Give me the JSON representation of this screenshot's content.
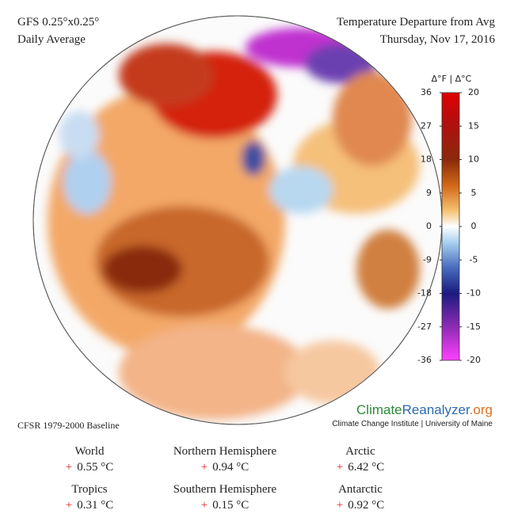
{
  "header": {
    "model": "GFS 0.25°x0.25°",
    "period": "Daily Average",
    "title": "Temperature Departure from Avg",
    "date": "Thursday, Nov 17, 2016"
  },
  "colorbar": {
    "label": "Δ°F | Δ°C",
    "fahrenheit_ticks": [
      36,
      27,
      18,
      9,
      0,
      -9,
      -18,
      -27,
      -36
    ],
    "celsius_ticks": [
      20,
      15,
      10,
      5,
      0,
      -5,
      -10,
      -15,
      -20
    ]
  },
  "baseline": "CFSR 1979-2000 Baseline",
  "logo": {
    "part1": "Climate",
    "part2": "Reanalyzer",
    "part3": ".org",
    "org": "Climate Change Institute | University of Maine"
  },
  "stats": [
    {
      "region": "World",
      "sign": "+",
      "value": "0.55 °C"
    },
    {
      "region": "Northern Hemisphere",
      "sign": "+",
      "value": "0.94 °C"
    },
    {
      "region": "Arctic",
      "sign": "+",
      "value": "6.42 °C"
    },
    {
      "region": "Tropics",
      "sign": "+",
      "value": "0.31 °C"
    },
    {
      "region": "Southern Hemisphere",
      "sign": "+",
      "value": "0.15 °C"
    },
    {
      "region": "Antarctic",
      "sign": "+",
      "value": "0.92 °C"
    }
  ]
}
